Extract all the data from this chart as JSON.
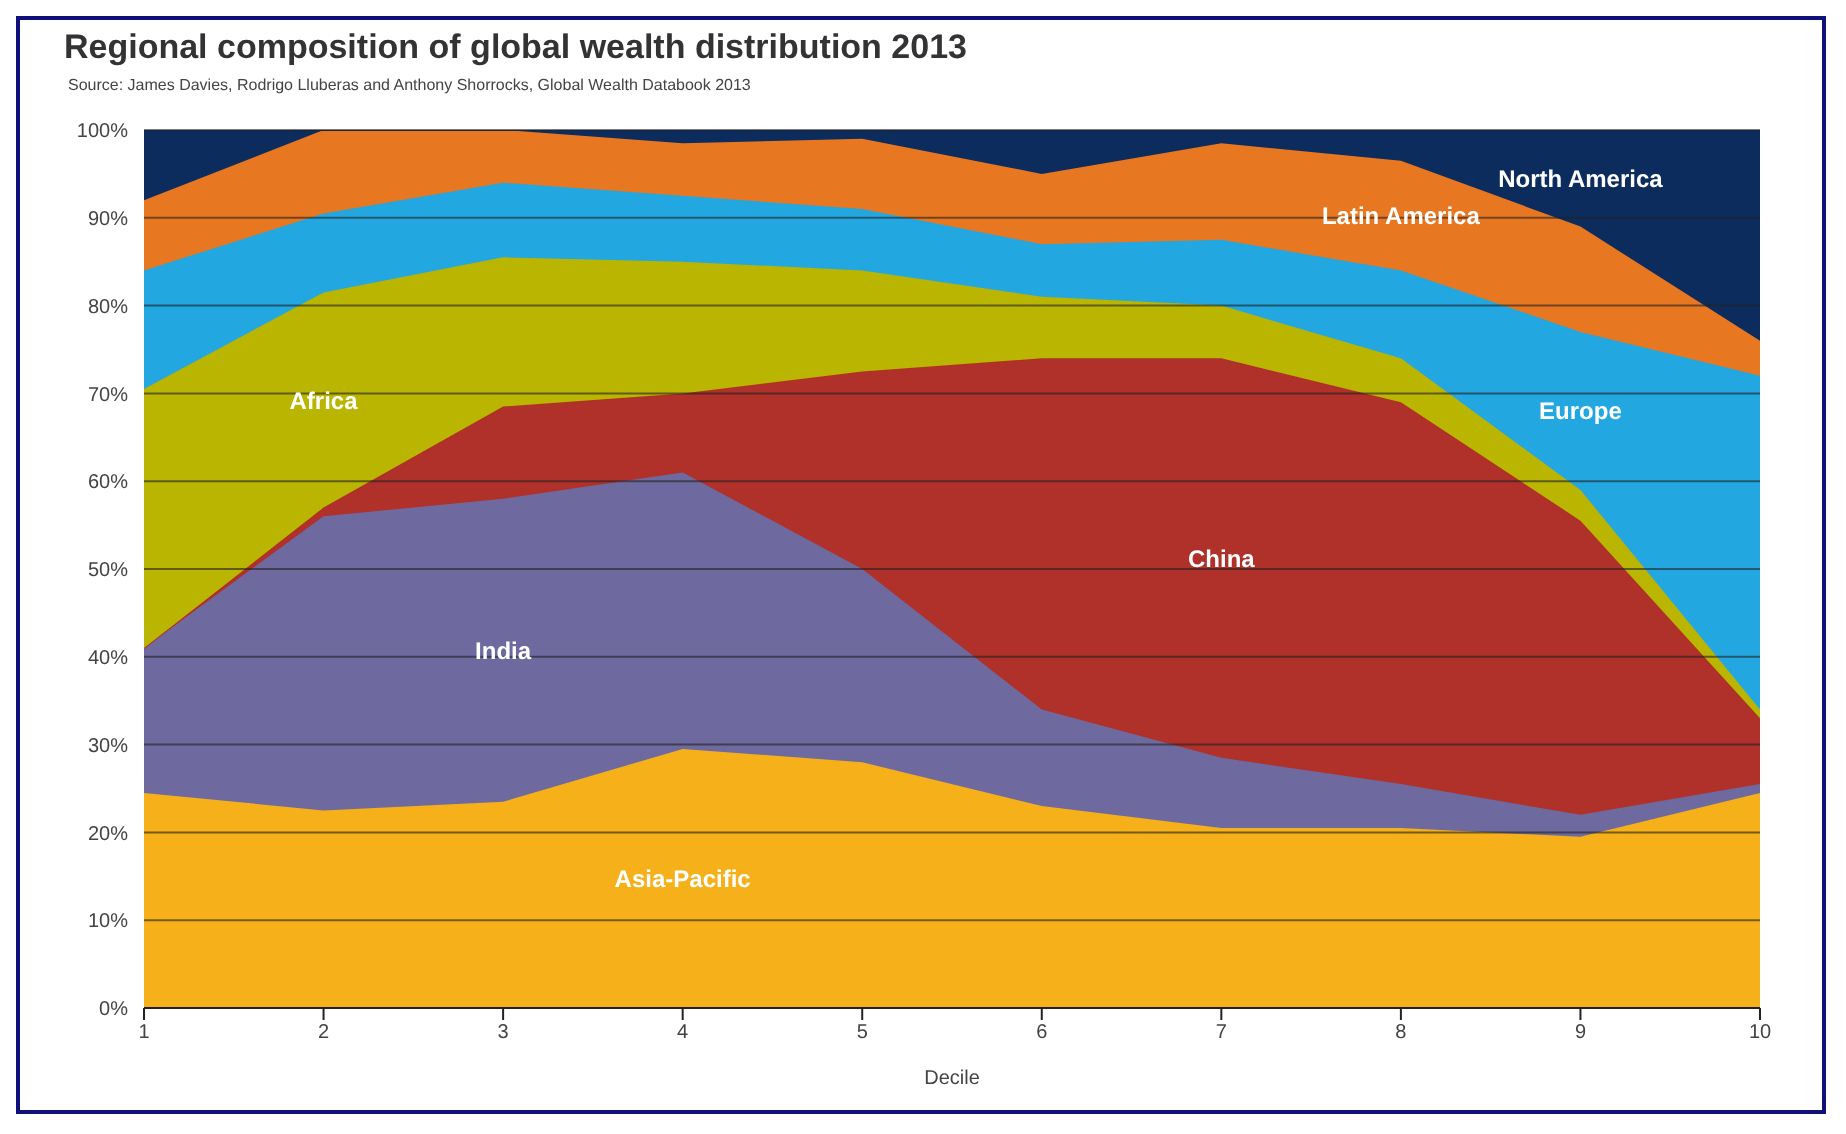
{
  "chart_data": {
    "type": "area",
    "stacked": true,
    "title": "Regional composition of global wealth distribution 2013",
    "annotations": [
      "Source: James Davies, Rodrigo Lluberas and Anthony Shorrocks, Global Wealth Databook 2013"
    ],
    "xlabel": "Decile",
    "x": [
      1,
      2,
      3,
      4,
      5,
      6,
      7,
      8,
      9,
      10
    ],
    "xlim": [
      1,
      10
    ],
    "xticks": [
      1,
      2,
      3,
      4,
      5,
      6,
      7,
      8,
      9,
      10
    ],
    "ylim": [
      0,
      100
    ],
    "yticks": [
      {
        "value": 0,
        "label": "0%"
      },
      {
        "value": 10,
        "label": "10%"
      },
      {
        "value": 20,
        "label": "20%"
      },
      {
        "value": 30,
        "label": "30%"
      },
      {
        "value": 40,
        "label": "40%"
      },
      {
        "value": 50,
        "label": "50%"
      },
      {
        "value": 60,
        "label": "60%"
      },
      {
        "value": 70,
        "label": "70%"
      },
      {
        "value": 80,
        "label": "80%"
      },
      {
        "value": 90,
        "label": "90%"
      },
      {
        "value": 100,
        "label": "100%"
      }
    ],
    "grid": "y",
    "legend": false,
    "series": [
      {
        "name": "Asia-Pacific",
        "color": "#f5b01a",
        "values": [
          24.5,
          22.5,
          23.5,
          29.5,
          28,
          23,
          20.5,
          20.5,
          19.5,
          24.5
        ]
      },
      {
        "name": "India",
        "color": "#6e6aa0",
        "values": [
          16.5,
          33.5,
          34.5,
          31.5,
          22,
          11,
          8,
          5,
          2.5,
          1
        ]
      },
      {
        "name": "China",
        "color": "#b0302a",
        "values": [
          0,
          1,
          10.5,
          9,
          22.5,
          40,
          45.5,
          43.5,
          33.5,
          7.5
        ]
      },
      {
        "name": "Africa",
        "color": "#b9b500",
        "values": [
          29.5,
          24.5,
          17,
          15,
          11.5,
          7,
          6,
          5,
          3.5,
          1
        ]
      },
      {
        "name": "Europe",
        "color": "#23a7e0",
        "values": [
          13.5,
          9,
          8.5,
          7.5,
          7,
          6,
          7.5,
          10,
          18,
          38
        ]
      },
      {
        "name": "Latin America",
        "color": "#e87722",
        "values": [
          8,
          9.5,
          6,
          6,
          8,
          8,
          11,
          12.5,
          12,
          4
        ]
      },
      {
        "name": "North America",
        "color": "#0d2c5e",
        "values": [
          8,
          0,
          0,
          1.5,
          1,
          5,
          1.5,
          3.5,
          11,
          24
        ]
      }
    ]
  }
}
